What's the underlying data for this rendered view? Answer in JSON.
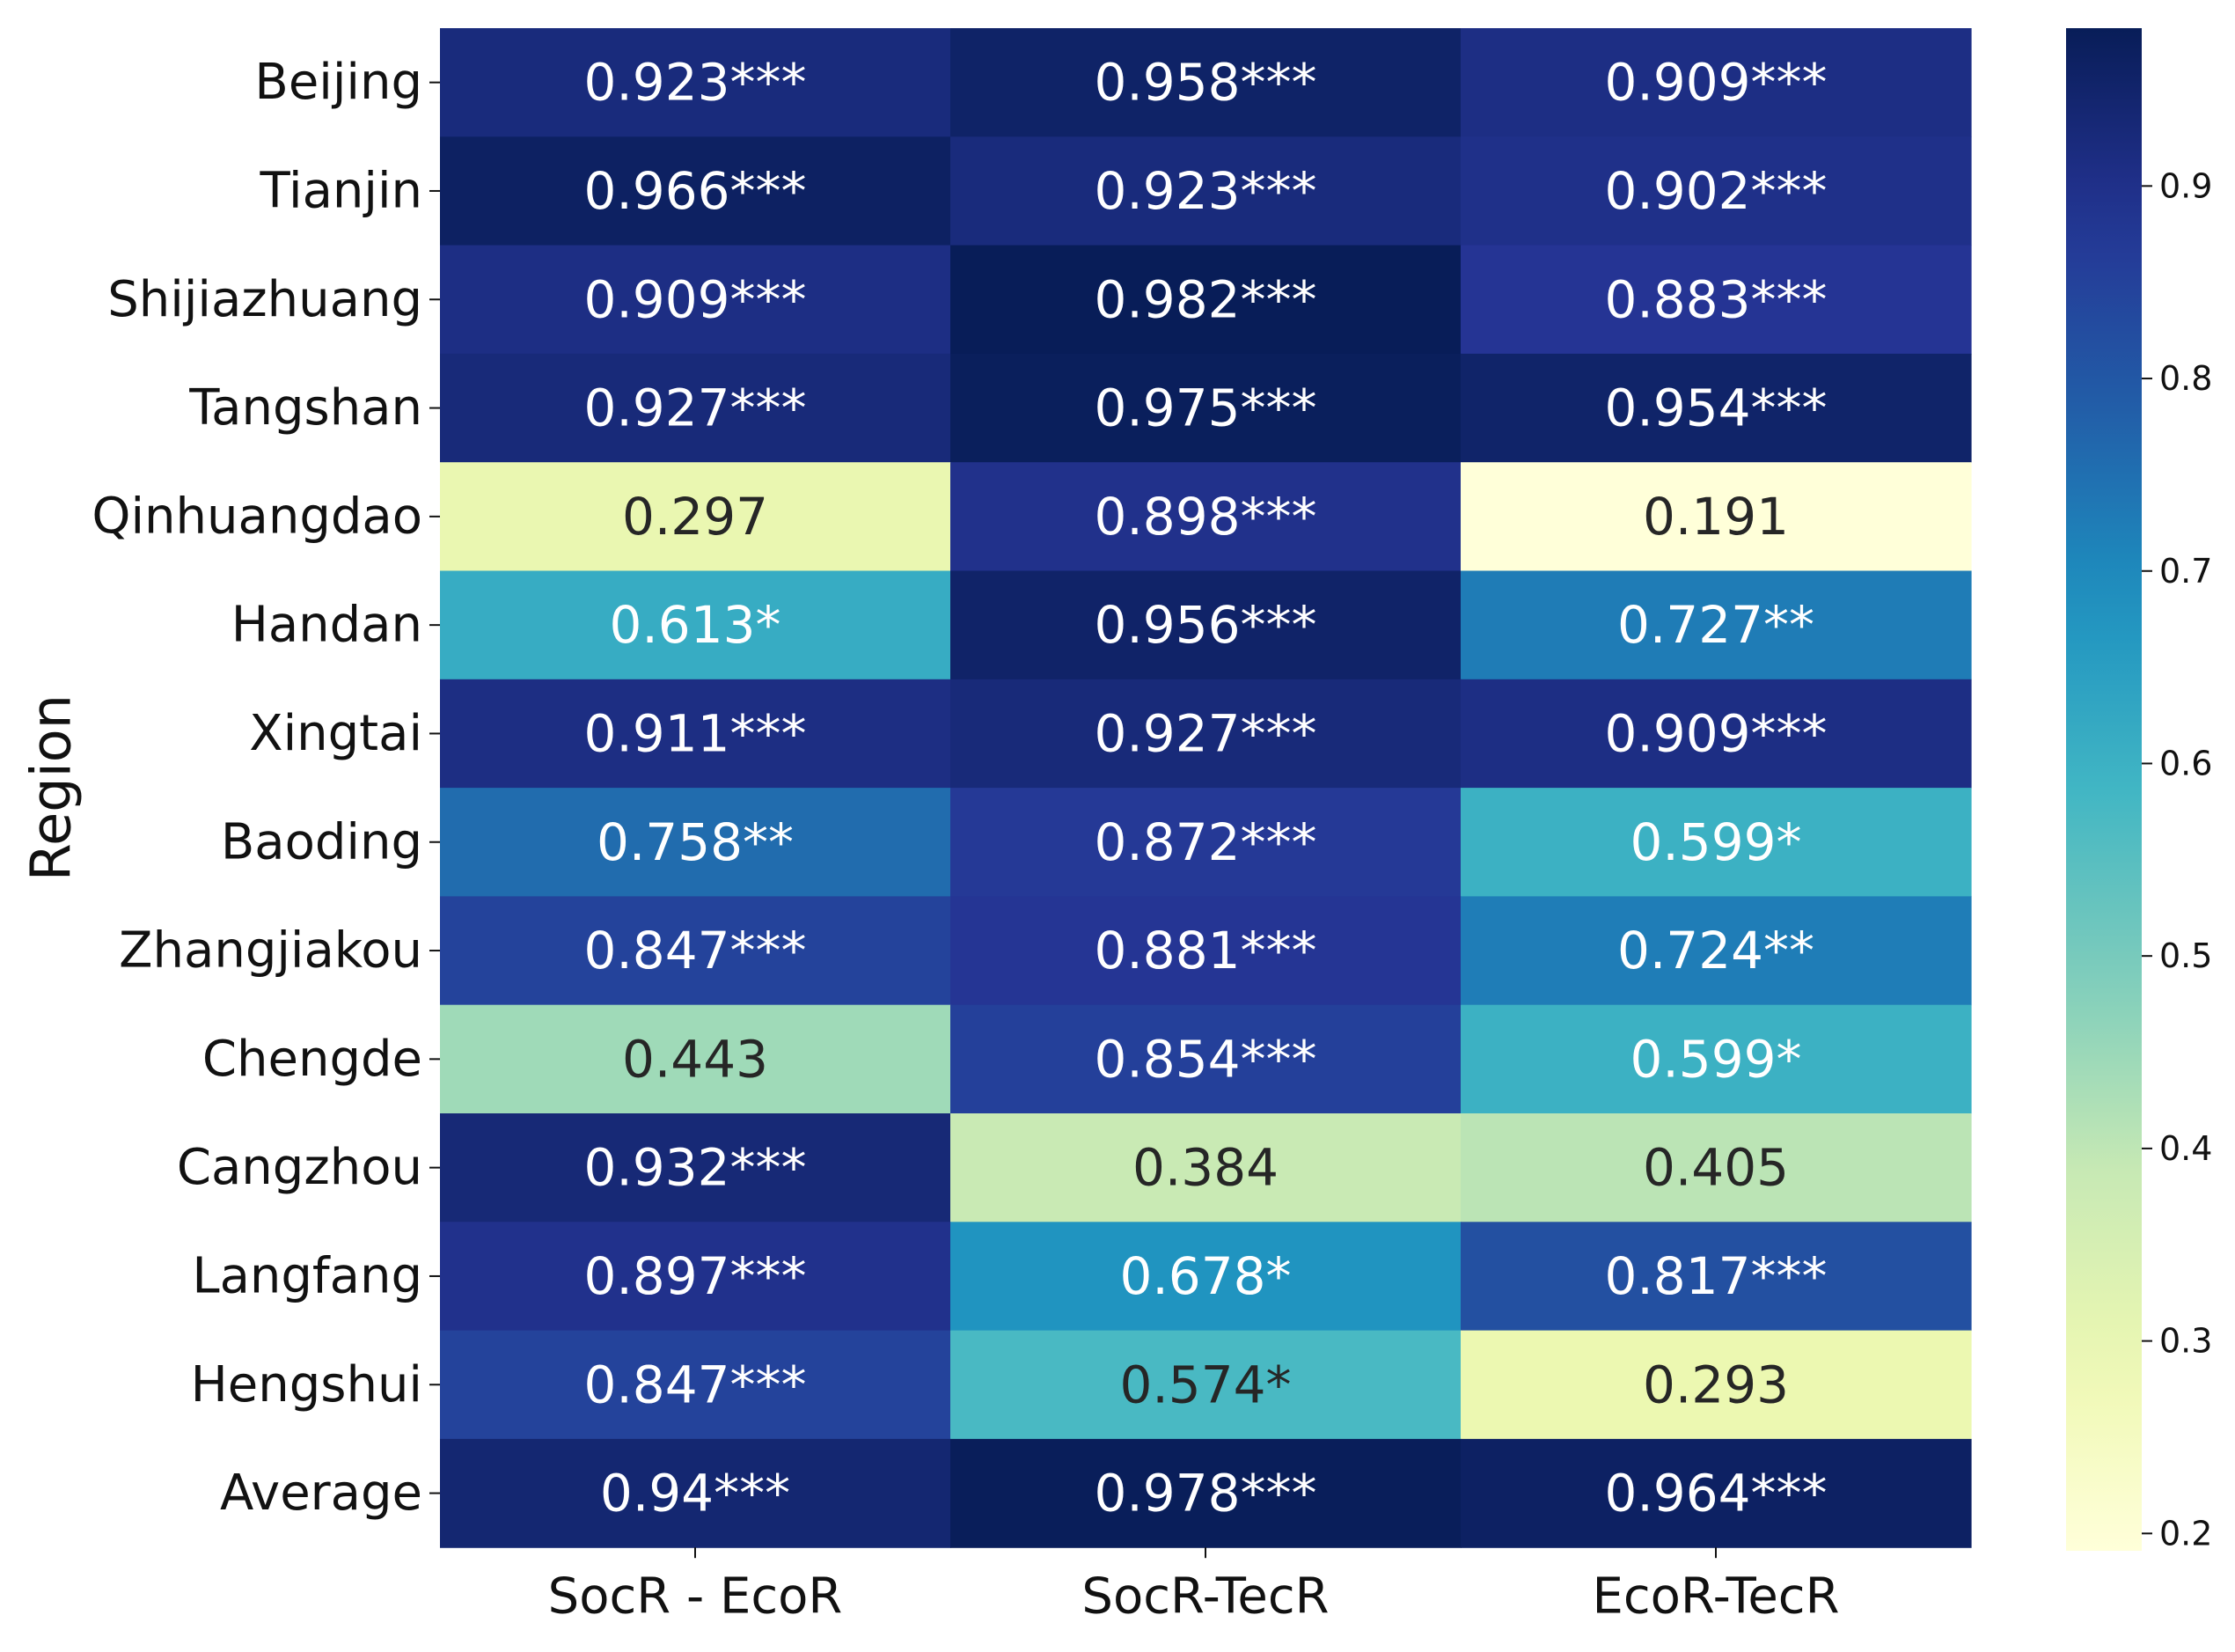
{
  "chart_data": {
    "type": "heatmap",
    "title": "",
    "xlabel": "",
    "ylabel": "Region",
    "rows": [
      "Beijing",
      "Tianjin",
      "Shijiazhuang",
      "Tangshan",
      "Qinhuangdao",
      "Handan",
      "Xingtai",
      "Baoding",
      "Zhangjiakou",
      "Chengde",
      "Cangzhou",
      "Langfang",
      "Hengshui",
      "Average"
    ],
    "columns": [
      "SocR - EcoR",
      "SocR-TecR",
      "EcoR-TecR"
    ],
    "values": [
      [
        0.923,
        0.958,
        0.909
      ],
      [
        0.966,
        0.923,
        0.902
      ],
      [
        0.909,
        0.982,
        0.883
      ],
      [
        0.927,
        0.975,
        0.954
      ],
      [
        0.297,
        0.898,
        0.191
      ],
      [
        0.613,
        0.956,
        0.727
      ],
      [
        0.911,
        0.927,
        0.909
      ],
      [
        0.758,
        0.872,
        0.599
      ],
      [
        0.847,
        0.881,
        0.724
      ],
      [
        0.443,
        0.854,
        0.599
      ],
      [
        0.932,
        0.384,
        0.405
      ],
      [
        0.897,
        0.678,
        0.817
      ],
      [
        0.847,
        0.574,
        0.293
      ],
      [
        0.94,
        0.978,
        0.964
      ]
    ],
    "annotations": [
      [
        "0.923***",
        "0.958***",
        "0.909***"
      ],
      [
        "0.966***",
        "0.923***",
        "0.902***"
      ],
      [
        "0.909***",
        "0.982***",
        "0.883***"
      ],
      [
        "0.927***",
        "0.975***",
        "0.954***"
      ],
      [
        "0.297",
        "0.898***",
        "0.191"
      ],
      [
        "0.613*",
        "0.956***",
        "0.727**"
      ],
      [
        "0.911***",
        "0.927***",
        "0.909***"
      ],
      [
        "0.758**",
        "0.872***",
        "0.599*"
      ],
      [
        "0.847***",
        "0.881***",
        "0.724**"
      ],
      [
        "0.443",
        "0.854***",
        "0.599*"
      ],
      [
        "0.932***",
        "0.384",
        "0.405"
      ],
      [
        "0.897***",
        "0.678*",
        "0.817***"
      ],
      [
        "0.847***",
        "0.574*",
        "0.293"
      ],
      [
        "0.94***",
        "0.978***",
        "0.964***"
      ]
    ],
    "colormap": "YlGnBu",
    "colorbar": {
      "range": [
        0.191,
        0.982
      ],
      "ticks": [
        0.2,
        0.3,
        0.4,
        0.5,
        0.6,
        0.7,
        0.8,
        0.9
      ],
      "tick_labels": [
        "0.2",
        "0.3",
        "0.4",
        "0.5",
        "0.6",
        "0.7",
        "0.8",
        "0.9"
      ],
      "placement": "right"
    },
    "colors": {
      "scale": [
        "#ffffd9",
        "#edf8b1",
        "#c7e9b4",
        "#7fcdbb",
        "#41b6c4",
        "#1d91c0",
        "#225ea8",
        "#253494",
        "#081d58"
      ],
      "dark_text": "#262626",
      "light_text": "#ffffff"
    }
  }
}
